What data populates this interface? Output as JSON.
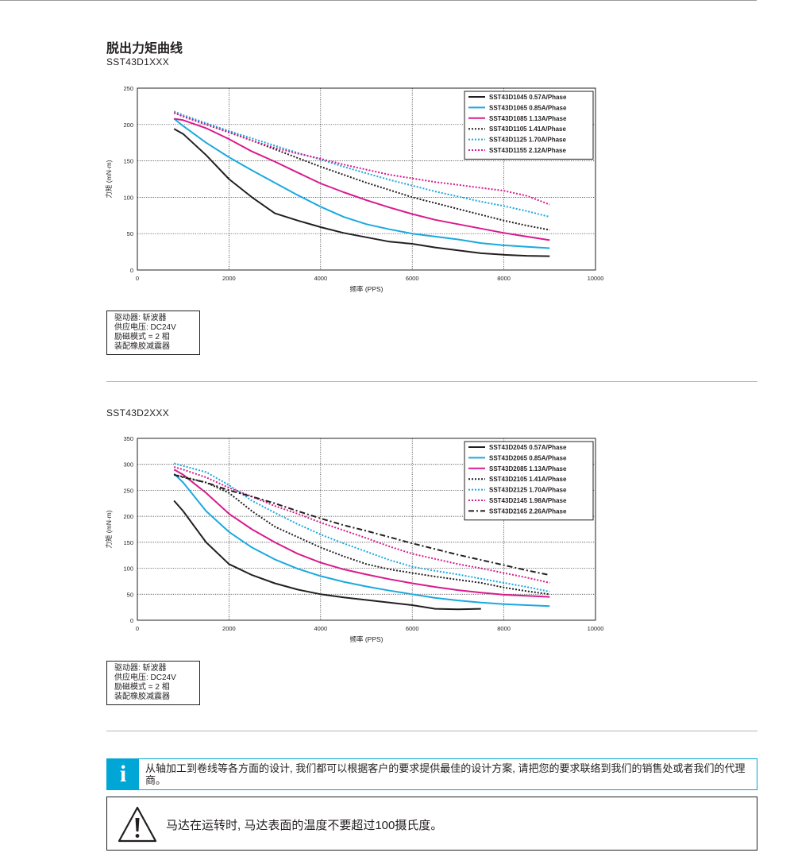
{
  "page": {
    "title": "脱出力矩曲线",
    "info_text": "从轴加工到卷线等各方面的设计, 我们都可以根据客户的要求提供最佳的设计方案, 请把您的要求联络到我们的销售处或者我们的代理商。",
    "warning_text": "马达在运转时, 马达表面的温度不要超过100摄氏度。"
  },
  "charts": [
    {
      "model": "SST43D1XXX",
      "notes": [
        "驱动器: 斩波器",
        "供应电压: DC24V",
        "励磁模式 = 2 相",
        "装配橡胶减震器"
      ],
      "ytick_labels": [
        "0",
        "50",
        "100",
        "150",
        "200",
        "250"
      ],
      "xtick_labels": [
        "0",
        "2000",
        "4000",
        "6000",
        "8000",
        "10000"
      ]
    },
    {
      "model": "SST43D2XXX",
      "notes": [
        "驱动器: 斩波器",
        "供应电压: DC24V",
        "励磁模式 = 2 相",
        "装配橡胶减震器"
      ],
      "ytick_labels": [
        "0",
        "50",
        "100",
        "150",
        "200",
        "250",
        "300",
        "350"
      ],
      "xtick_labels": [
        "0",
        "2000",
        "4000",
        "6000",
        "8000",
        "10000"
      ]
    }
  ],
  "chart_data": [
    {
      "type": "line",
      "title": "",
      "xlabel": "频率 (PPS)",
      "ylabel": "力矩 (mN·m)",
      "xlim": [
        0,
        10000
      ],
      "ylim": [
        0,
        250
      ],
      "grid": true,
      "legend_position": "top-right",
      "series": [
        {
          "name": "SST43D1045  0.57A/Phase",
          "color": "#231f20",
          "style": "solid",
          "x": [
            800,
            1000,
            1500,
            2000,
            2500,
            3000,
            3500,
            4000,
            4500,
            5000,
            5500,
            6000,
            6500,
            7000,
            7500,
            8000,
            8500,
            9000
          ],
          "y": [
            194,
            187,
            158,
            125,
            100,
            78,
            68,
            59,
            51,
            45,
            39,
            36,
            31,
            27,
            23,
            21,
            19.5,
            19
          ]
        },
        {
          "name": "SST43D1065  0.85A/Phase",
          "color": "#1aa9df",
          "style": "solid",
          "x": [
            800,
            1000,
            1500,
            2000,
            2500,
            3000,
            3500,
            4000,
            4500,
            5000,
            5500,
            6000,
            6500,
            7000,
            7500,
            8000,
            8500,
            9000
          ],
          "y": [
            208,
            198,
            175,
            155,
            137,
            120,
            103,
            87,
            73,
            63,
            56,
            50,
            46,
            42,
            37,
            34,
            32,
            30
          ]
        },
        {
          "name": "SST43D1085  1.13A/Phase",
          "color": "#d81b8c",
          "style": "solid",
          "x": [
            800,
            1000,
            1500,
            2000,
            2500,
            3000,
            3500,
            4000,
            4500,
            5000,
            5500,
            6000,
            6500,
            7000,
            7500,
            8000,
            8500,
            9000
          ],
          "y": [
            208,
            206,
            195,
            180,
            163,
            149,
            134,
            119,
            107,
            96,
            86,
            77,
            69,
            63,
            57,
            51,
            46,
            41
          ]
        },
        {
          "name": "SST43D1105  1.41A/Phase",
          "color": "#231f20",
          "style": "dotted",
          "x": [
            800,
            1000,
            1500,
            2000,
            2500,
            3000,
            3500,
            4000,
            4500,
            5000,
            5500,
            6000,
            6500,
            7000,
            7500,
            8000,
            8500,
            9000
          ],
          "y": [
            216,
            211,
            200,
            190,
            178,
            166,
            154,
            142,
            131,
            120,
            110,
            100,
            92,
            84,
            76,
            68,
            61,
            55
          ]
        },
        {
          "name": "SST43D1125  1.70A/Phase",
          "color": "#1aa9df",
          "style": "dotted",
          "x": [
            800,
            1000,
            1500,
            2000,
            2500,
            3000,
            3500,
            4000,
            4500,
            5000,
            5500,
            6000,
            6500,
            7000,
            7500,
            8000,
            8500,
            9000
          ],
          "y": [
            218,
            213,
            202,
            191,
            181,
            171,
            161,
            152,
            142,
            133,
            124,
            116,
            108,
            101,
            94,
            88,
            81,
            73
          ]
        },
        {
          "name": "SST43D1155  2.12A/Phase",
          "color": "#d81b8c",
          "style": "dotted",
          "x": [
            800,
            1000,
            1500,
            2000,
            2500,
            3000,
            3500,
            4000,
            4500,
            5000,
            5500,
            6000,
            6500,
            7000,
            7500,
            8000,
            8500,
            9000
          ],
          "y": [
            216,
            211,
            200,
            189,
            178,
            168,
            160,
            153,
            145,
            138,
            131,
            126,
            121,
            117,
            113,
            109,
            102,
            90
          ]
        }
      ]
    },
    {
      "type": "line",
      "title": "",
      "xlabel": "频率 (PPS)",
      "ylabel": "力矩 (mN·m)",
      "xlim": [
        0,
        10000
      ],
      "ylim": [
        0,
        350
      ],
      "grid": true,
      "legend_position": "top-right",
      "series": [
        {
          "name": "SST43D2045  0.57A/Phase",
          "color": "#231f20",
          "style": "solid",
          "x": [
            800,
            1000,
            1500,
            2000,
            2500,
            3000,
            3500,
            4000,
            4500,
            5000,
            5500,
            6000,
            6500,
            7000,
            7500
          ],
          "y": [
            230,
            210,
            150,
            108,
            87,
            71,
            59,
            50,
            44,
            39,
            34,
            29,
            22,
            21,
            22
          ]
        },
        {
          "name": "SST43D2065  0.85A/Phase",
          "color": "#1aa9df",
          "style": "solid",
          "x": [
            800,
            1000,
            1500,
            2000,
            2500,
            3000,
            3500,
            4000,
            4500,
            5000,
            5500,
            6000,
            6500,
            7000,
            7500,
            8000,
            8500,
            9000
          ],
          "y": [
            282,
            265,
            210,
            170,
            140,
            117,
            99,
            85,
            74,
            65,
            57,
            50,
            43,
            38,
            34,
            31,
            29,
            27
          ]
        },
        {
          "name": "SST43D2085  1.13A/Phase",
          "color": "#d81b8c",
          "style": "solid",
          "x": [
            800,
            1000,
            1500,
            2000,
            2500,
            3000,
            3500,
            4000,
            4500,
            5000,
            5500,
            6000,
            6500,
            7000,
            7500,
            8000,
            8500,
            9000
          ],
          "y": [
            290,
            280,
            245,
            205,
            175,
            150,
            128,
            111,
            98,
            88,
            79,
            71,
            64,
            58,
            53,
            49,
            47,
            45
          ]
        },
        {
          "name": "SST43D2105  1.41A/Phase",
          "color": "#231f20",
          "style": "dotted",
          "x": [
            800,
            1000,
            1500,
            2000,
            2500,
            3000,
            3500,
            4000,
            4500,
            5000,
            5500,
            6000,
            6500,
            7000,
            7500,
            8000,
            8500,
            9000
          ],
          "y": [
            280,
            276,
            265,
            245,
            210,
            180,
            160,
            140,
            123,
            108,
            98,
            91,
            84,
            78,
            72,
            63,
            56,
            50
          ]
        },
        {
          "name": "SST43D2125  1.70A/Phase",
          "color": "#1aa9df",
          "style": "dotted",
          "x": [
            800,
            1000,
            1500,
            2000,
            2500,
            3000,
            3500,
            4000,
            4500,
            5000,
            5500,
            6000,
            6500,
            7000,
            7500,
            8000,
            8500,
            9000
          ],
          "y": [
            302,
            297,
            285,
            260,
            230,
            207,
            185,
            165,
            148,
            132,
            116,
            103,
            95,
            88,
            80,
            72,
            64,
            55
          ]
        },
        {
          "name": "SST43D2145  1.98A/Phase",
          "color": "#d81b8c",
          "style": "dotted",
          "x": [
            800,
            1000,
            1500,
            2000,
            2500,
            3000,
            3500,
            4000,
            4500,
            5000,
            5500,
            6000,
            6500,
            7000,
            7500,
            8000,
            8500,
            9000
          ],
          "y": [
            295,
            290,
            275,
            255,
            238,
            220,
            205,
            188,
            173,
            158,
            142,
            128,
            118,
            108,
            100,
            91,
            82,
            72
          ]
        },
        {
          "name": "SST43D2165  2.26A/Phase",
          "color": "#231f20",
          "style": "dashdot",
          "x": [
            800,
            1000,
            1500,
            2000,
            2500,
            3000,
            3500,
            4000,
            4500,
            5000,
            5500,
            6000,
            6500,
            7000,
            7500,
            8000,
            8500,
            9000
          ],
          "y": [
            280,
            275,
            265,
            250,
            238,
            225,
            210,
            196,
            183,
            172,
            160,
            148,
            137,
            126,
            116,
            106,
            96,
            87
          ]
        }
      ]
    }
  ]
}
